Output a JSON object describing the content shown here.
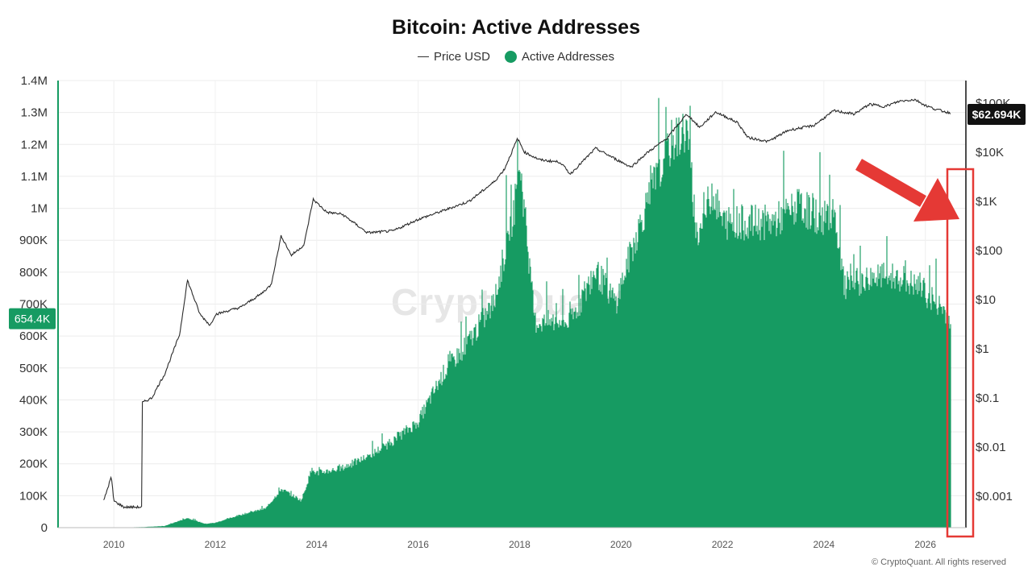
{
  "chart_data": {
    "type": "area",
    "title": "Bitcoin: Active Addresses",
    "legend": [
      {
        "name": "Price USD",
        "color": "#333333",
        "marker": "line"
      },
      {
        "name": "Active Addresses",
        "color": "#169b62",
        "marker": "dot"
      }
    ],
    "legend_position": "top-center",
    "x_ticks": [
      "2010",
      "2012",
      "2014",
      "2016",
      "2018",
      "2020",
      "2022",
      "2024",
      "2026"
    ],
    "xlim": [
      2008.9,
      2026.8
    ],
    "y_left": {
      "ticks": [
        "0",
        "100K",
        "200K",
        "300K",
        "400K",
        "500K",
        "600K",
        "700K",
        "800K",
        "900K",
        "1M",
        "1.1M",
        "1.2M",
        "1.3M",
        "1.4M"
      ],
      "ylim": [
        0,
        1400000
      ],
      "current_label": "654.4K",
      "current_value": 654400
    },
    "y_right": {
      "scale": "log",
      "ticks": [
        "$100K",
        "$10K",
        "$1K",
        "$100",
        "$10",
        "$1",
        "$0.1",
        "$0.01",
        "$0.001"
      ],
      "current_label": "$62.694K",
      "current_value": 62694
    },
    "grid": true,
    "series": [
      {
        "name": "Active Addresses",
        "color": "#169b62",
        "points": [
          [
            2009.0,
            0
          ],
          [
            2010.0,
            500
          ],
          [
            2010.5,
            1500
          ],
          [
            2011.0,
            5000
          ],
          [
            2011.45,
            30000
          ],
          [
            2011.8,
            12000
          ],
          [
            2012.0,
            15000
          ],
          [
            2012.5,
            40000
          ],
          [
            2013.0,
            60000
          ],
          [
            2013.3,
            120000
          ],
          [
            2013.7,
            85000
          ],
          [
            2013.9,
            180000
          ],
          [
            2014.0,
            170000
          ],
          [
            2014.5,
            185000
          ],
          [
            2015.0,
            220000
          ],
          [
            2015.5,
            270000
          ],
          [
            2016.0,
            330000
          ],
          [
            2016.5,
            480000
          ],
          [
            2017.0,
            580000
          ],
          [
            2017.5,
            700000
          ],
          [
            2017.9,
            1000000
          ],
          [
            2018.0,
            1150000
          ],
          [
            2018.3,
            640000
          ],
          [
            2018.5,
            640000
          ],
          [
            2019.0,
            640000
          ],
          [
            2019.5,
            800000
          ],
          [
            2019.9,
            700000
          ],
          [
            2020.2,
            860000
          ],
          [
            2020.6,
            1050000
          ],
          [
            2021.0,
            1200000
          ],
          [
            2021.3,
            1240000
          ],
          [
            2021.5,
            900000
          ],
          [
            2021.8,
            1050000
          ],
          [
            2022.0,
            950000
          ],
          [
            2022.5,
            950000
          ],
          [
            2023.0,
            950000
          ],
          [
            2023.5,
            1000000
          ],
          [
            2024.0,
            960000
          ],
          [
            2024.2,
            1000000
          ],
          [
            2024.4,
            750000
          ],
          [
            2024.6,
            760000
          ],
          [
            2025.0,
            780000
          ],
          [
            2025.5,
            780000
          ],
          [
            2026.0,
            730000
          ],
          [
            2026.35,
            680000
          ],
          [
            2026.5,
            654400
          ]
        ]
      },
      {
        "name": "Price USD",
        "color": "#333333",
        "points": [
          [
            2009.8,
            0.0008
          ],
          [
            2009.95,
            0.0025
          ],
          [
            2010.0,
            0.0008
          ],
          [
            2010.2,
            0.0006
          ],
          [
            2010.55,
            0.0006
          ],
          [
            2010.56,
            0.08
          ],
          [
            2010.75,
            0.1
          ],
          [
            2010.9,
            0.2
          ],
          [
            2011.0,
            0.3
          ],
          [
            2011.3,
            2
          ],
          [
            2011.45,
            25
          ],
          [
            2011.7,
            5
          ],
          [
            2011.9,
            3
          ],
          [
            2012.0,
            5
          ],
          [
            2012.5,
            7
          ],
          [
            2012.9,
            13
          ],
          [
            2013.1,
            20
          ],
          [
            2013.3,
            200
          ],
          [
            2013.5,
            80
          ],
          [
            2013.75,
            130
          ],
          [
            2013.93,
            1100
          ],
          [
            2014.2,
            600
          ],
          [
            2014.5,
            550
          ],
          [
            2015.0,
            230
          ],
          [
            2015.5,
            250
          ],
          [
            2016.0,
            430
          ],
          [
            2016.5,
            650
          ],
          [
            2017.0,
            1000
          ],
          [
            2017.5,
            2500
          ],
          [
            2017.7,
            4500
          ],
          [
            2017.96,
            19000
          ],
          [
            2018.1,
            10000
          ],
          [
            2018.4,
            7000
          ],
          [
            2018.8,
            6300
          ],
          [
            2019.0,
            3600
          ],
          [
            2019.5,
            12000
          ],
          [
            2019.9,
            7200
          ],
          [
            2020.2,
            5000
          ],
          [
            2020.5,
            9500
          ],
          [
            2020.9,
            19000
          ],
          [
            2021.3,
            60000
          ],
          [
            2021.55,
            32000
          ],
          [
            2021.87,
            66000
          ],
          [
            2022.3,
            40000
          ],
          [
            2022.5,
            20000
          ],
          [
            2022.9,
            16500
          ],
          [
            2023.3,
            28000
          ],
          [
            2023.8,
            35000
          ],
          [
            2024.2,
            70000
          ],
          [
            2024.6,
            60000
          ],
          [
            2024.9,
            95000
          ],
          [
            2025.2,
            85000
          ],
          [
            2025.5,
            110000
          ],
          [
            2025.8,
            118000
          ],
          [
            2026.0,
            90000
          ],
          [
            2026.2,
            75000
          ],
          [
            2026.5,
            62694
          ]
        ]
      }
    ]
  },
  "footer": {
    "copyright": "© CryptoQuant. All rights reserved",
    "watermark": "CryptoQuant"
  },
  "annotation": {
    "color": "#e53935"
  }
}
